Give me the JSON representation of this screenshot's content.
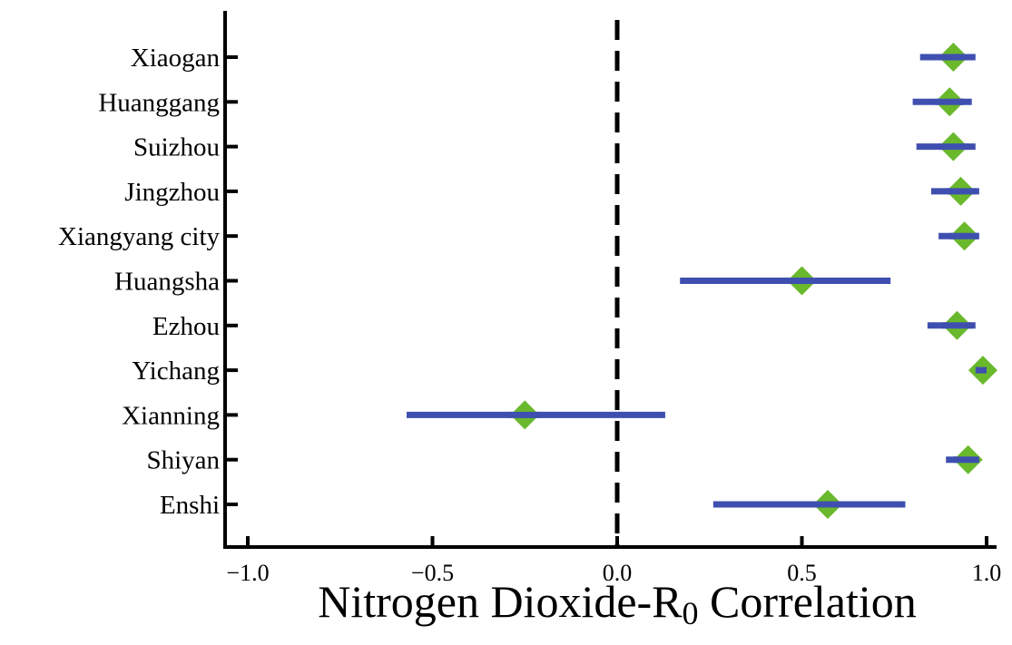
{
  "chart_data": {
    "type": "forest",
    "title": "",
    "xlabel": "Nitrogen Dioxide-R",
    "xlabel_subscript": "0",
    "xlabel_suffix": " Correlation",
    "ylabel": "",
    "xlim": [
      -1.05,
      1.05
    ],
    "xticks": [
      -1.0,
      -0.5,
      0.0,
      0.5,
      1.0
    ],
    "xtick_labels": [
      "−1.0",
      "−0.5",
      "0.0",
      "0.5",
      "1.0"
    ],
    "reference_line": 0.0,
    "grid": false,
    "marker_shape": "diamond",
    "colors": {
      "interval": "#3f4fb0",
      "point": "#6ab82c",
      "axes": "#000000",
      "reference": "#000000"
    },
    "categories": [
      "Xiaogan",
      "Huanggang",
      "Suizhou",
      "Jingzhou",
      "Xiangyang city",
      "Huangsha",
      "Ezhou",
      "Yichang",
      "Xianning",
      "Shiyan",
      "Enshi"
    ],
    "estimates": [
      0.91,
      0.9,
      0.91,
      0.93,
      0.94,
      0.5,
      0.92,
      0.99,
      -0.25,
      0.95,
      0.57
    ],
    "lower": [
      0.82,
      0.8,
      0.81,
      0.85,
      0.87,
      0.17,
      0.84,
      0.97,
      -0.57,
      0.89,
      0.26
    ],
    "upper": [
      0.97,
      0.96,
      0.97,
      0.98,
      0.98,
      0.74,
      0.97,
      1.0,
      0.13,
      0.98,
      0.78
    ]
  }
}
